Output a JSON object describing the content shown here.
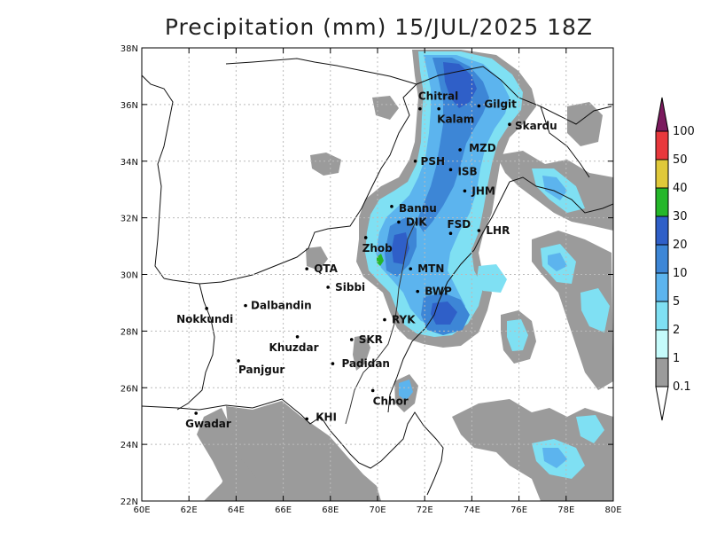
{
  "title": "Precipitation (mm) 15/JUL/2025 18Z",
  "map": {
    "lon_range": [
      60,
      80
    ],
    "lat_range": [
      22,
      38
    ],
    "x_ticks": [
      "60E",
      "62E",
      "64E",
      "66E",
      "68E",
      "70E",
      "72E",
      "74E",
      "76E",
      "78E",
      "80E"
    ],
    "y_ticks": [
      "22N",
      "24N",
      "26N",
      "28N",
      "30N",
      "32N",
      "34N",
      "36N",
      "38N"
    ],
    "grid": true
  },
  "cities": [
    {
      "name": "Chitral",
      "lon": 71.8,
      "lat": 35.85
    },
    {
      "name": "Kalam",
      "lon": 72.6,
      "lat": 35.85
    },
    {
      "name": "Gilgit",
      "lon": 74.3,
      "lat": 35.95
    },
    {
      "name": "Skardu",
      "lon": 75.6,
      "lat": 35.3
    },
    {
      "name": "MZD",
      "lon": 73.5,
      "lat": 34.4
    },
    {
      "name": "PSH",
      "lon": 71.6,
      "lat": 34.0
    },
    {
      "name": "ISB",
      "lon": 73.1,
      "lat": 33.7
    },
    {
      "name": "JHM",
      "lon": 73.7,
      "lat": 32.95
    },
    {
      "name": "Bannu",
      "lon": 70.6,
      "lat": 32.4
    },
    {
      "name": "DIK",
      "lon": 70.9,
      "lat": 31.85
    },
    {
      "name": "FSD",
      "lon": 73.1,
      "lat": 31.45
    },
    {
      "name": "LHR",
      "lon": 74.3,
      "lat": 31.55
    },
    {
      "name": "Zhob",
      "lon": 69.5,
      "lat": 31.3
    },
    {
      "name": "QTA",
      "lon": 67.0,
      "lat": 30.2
    },
    {
      "name": "MTN",
      "lon": 71.4,
      "lat": 30.2
    },
    {
      "name": "Sibbi",
      "lon": 67.9,
      "lat": 29.55
    },
    {
      "name": "BWP",
      "lon": 71.7,
      "lat": 29.4
    },
    {
      "name": "Dalbandin",
      "lon": 64.4,
      "lat": 28.9
    },
    {
      "name": "Nokkundi",
      "lon": 62.75,
      "lat": 28.8
    },
    {
      "name": "RYK",
      "lon": 70.3,
      "lat": 28.4
    },
    {
      "name": "Khuzdar",
      "lon": 66.6,
      "lat": 27.8
    },
    {
      "name": "SKR",
      "lon": 68.9,
      "lat": 27.7
    },
    {
      "name": "Padidan",
      "lon": 68.1,
      "lat": 26.85
    },
    {
      "name": "Panjgur",
      "lon": 64.1,
      "lat": 26.95
    },
    {
      "name": "Chhor",
      "lon": 69.8,
      "lat": 25.9
    },
    {
      "name": "Gwadar",
      "lon": 62.3,
      "lat": 25.1
    },
    {
      "name": "KHI",
      "lon": 67.0,
      "lat": 24.9
    }
  ],
  "colorbar": {
    "labels": [
      "100",
      "50",
      "40",
      "30",
      "20",
      "10",
      "5",
      "2",
      "1",
      "0.1"
    ],
    "colors": [
      "#7b1a5e",
      "#e8383c",
      "#e0c93a",
      "#25b72a",
      "#2f5fc8",
      "#3d86d6",
      "#5cb4ee",
      "#7fe0f3",
      "#c5fbfb",
      "#9b9b9b"
    ]
  },
  "colors": {
    "land": "#ffffff",
    "light_rain": "#9b9b9b",
    "cyan": "#7fe0f3",
    "sky": "#5cb4ee",
    "blue": "#3d86d6",
    "deep_blue": "#2f5fc8",
    "green": "#25b72a"
  }
}
